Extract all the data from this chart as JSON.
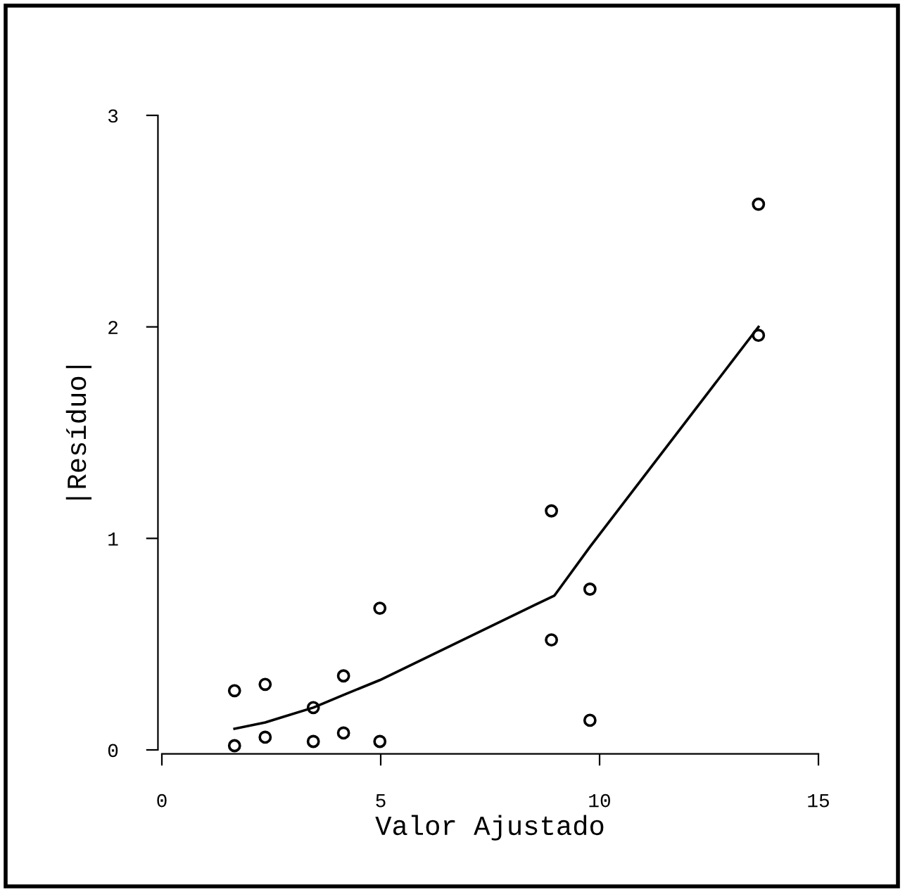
{
  "chart_data": {
    "type": "scatter",
    "xlabel": "Valor Ajustado",
    "ylabel": "|Resíduo|",
    "xlim": [
      0,
      15
    ],
    "ylim": [
      0,
      3
    ],
    "xticks": [
      0,
      5,
      10,
      15
    ],
    "yticks": [
      0,
      1,
      2,
      3
    ],
    "grid": false,
    "legend": false,
    "marker": "circle",
    "series": [
      {
        "color": "#000000",
        "x": [
          1.66,
          1.66,
          2.36,
          2.36,
          3.46,
          3.46,
          4.15,
          4.15,
          4.98,
          4.98,
          8.9,
          8.9,
          9.78,
          9.78,
          13.63,
          13.63
        ],
        "values": [
          0.28,
          0.02,
          0.31,
          0.06,
          0.2,
          0.04,
          0.35,
          0.08,
          0.67,
          0.04,
          1.13,
          0.52,
          0.76,
          0.14,
          2.58,
          1.96
        ]
      },
      {
        "type": "line",
        "color": "#000000",
        "marker": "none",
        "line_style": "solid",
        "x": [
          1.66,
          2.36,
          3.46,
          4.15,
          4.98,
          8.97,
          9.78,
          13.63
        ],
        "values": [
          0.1,
          0.13,
          0.2,
          0.26,
          0.33,
          0.73,
          0.96,
          2.0
        ]
      }
    ]
  }
}
